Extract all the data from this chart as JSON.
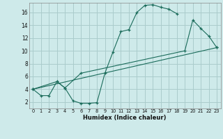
{
  "bg_color": "#ceeaea",
  "grid_color": "#aacccc",
  "line_color": "#1a6b5a",
  "xlabel": "Humidex (Indice chaleur)",
  "xlim": [
    -0.5,
    23.5
  ],
  "ylim": [
    1.0,
    17.5
  ],
  "xticks": [
    0,
    1,
    2,
    3,
    4,
    5,
    6,
    7,
    8,
    9,
    10,
    11,
    12,
    13,
    14,
    15,
    16,
    17,
    18,
    19,
    20,
    21,
    22,
    23
  ],
  "yticks": [
    2,
    4,
    6,
    8,
    10,
    12,
    14,
    16
  ],
  "curve1_x": [
    0,
    1,
    2,
    3,
    4,
    5,
    6,
    7,
    8,
    9,
    10,
    11,
    12,
    13,
    14,
    15,
    16,
    17,
    18
  ],
  "curve1_y": [
    4.0,
    3.0,
    3.0,
    5.2,
    4.2,
    2.2,
    1.8,
    1.8,
    1.9,
    6.5,
    9.8,
    13.0,
    13.3,
    16.0,
    17.1,
    17.2,
    16.8,
    16.5,
    15.8
  ],
  "curve2_x": [
    0,
    3,
    4,
    6,
    19,
    20,
    21,
    22,
    23
  ],
  "curve2_y": [
    4.0,
    5.2,
    4.2,
    6.5,
    10.0,
    14.8,
    13.5,
    12.3,
    10.5
  ],
  "curve3_x": [
    0,
    23
  ],
  "curve3_y": [
    4.0,
    10.5
  ],
  "xtick_fontsize": 4.8,
  "ytick_fontsize": 5.5,
  "xlabel_fontsize": 6.0
}
